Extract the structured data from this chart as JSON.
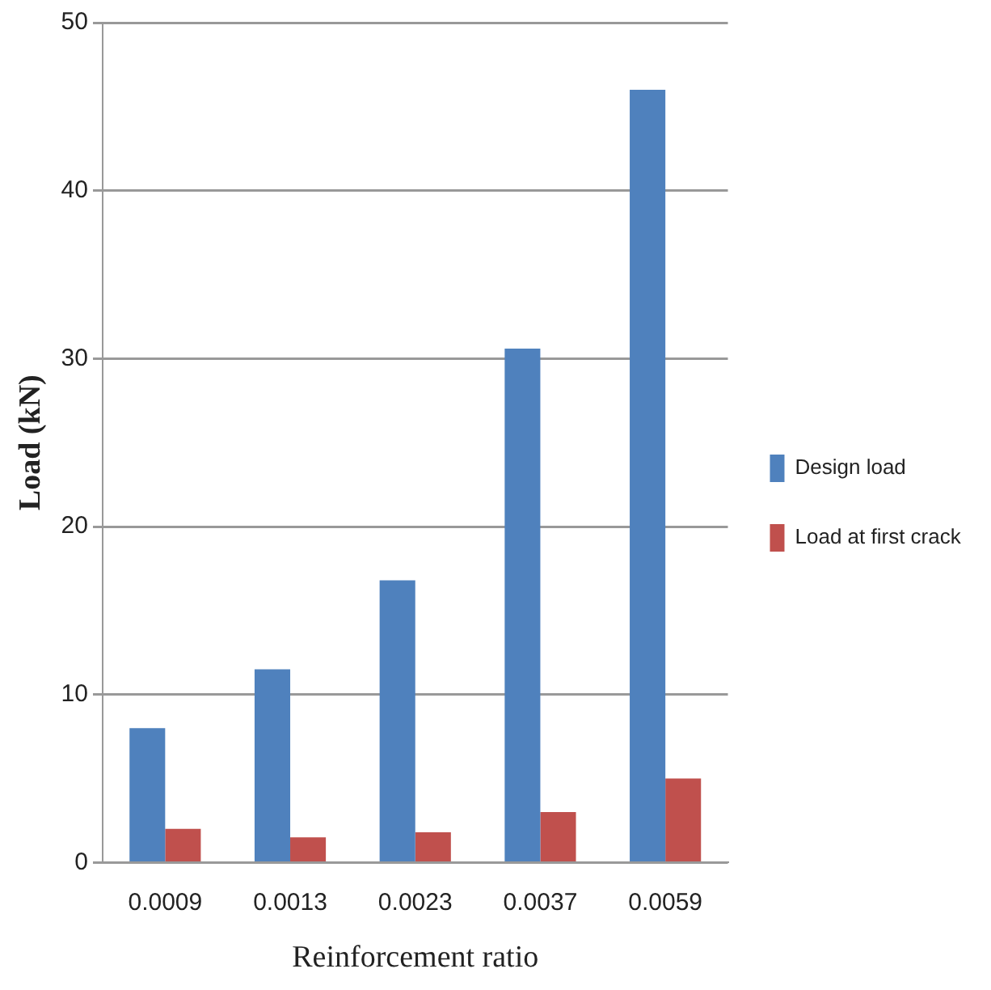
{
  "chart_data": {
    "type": "bar",
    "xlabel": "Reinforcement ratio",
    "ylabel": "Load (kN)",
    "categories": [
      "0.0009",
      "0.0013",
      "0.0023",
      "0.0037",
      "0.0059"
    ],
    "series": [
      {
        "name": "Design load",
        "color": "#4f81bd",
        "values": [
          8.0,
          11.5,
          16.8,
          30.6,
          46.0
        ]
      },
      {
        "name": "Load at first crack",
        "color": "#c0504d",
        "values": [
          2.0,
          1.5,
          1.8,
          3.0,
          5.0
        ]
      }
    ],
    "ylim": [
      0,
      50
    ],
    "yticks": [
      0,
      10,
      20,
      30,
      40,
      50
    ],
    "grid": "y",
    "legend": "right"
  }
}
